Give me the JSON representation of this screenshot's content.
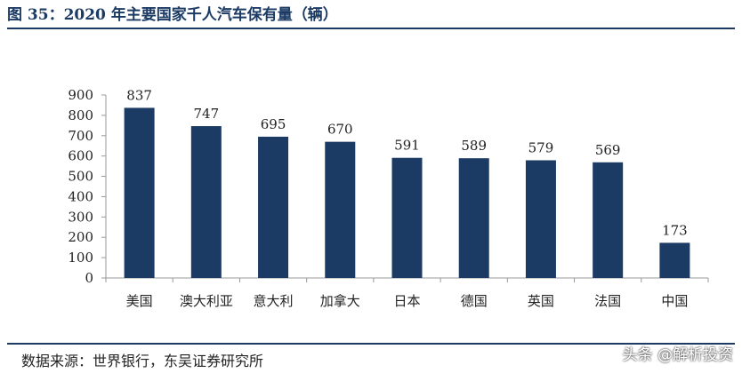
{
  "header": {
    "figure_title": "图 35：2020 年主要国家千人汽车保有量（辆）"
  },
  "footer": {
    "source": "数据来源：世界银行，东吴证券研究所",
    "watermark": "头条 @解析投资"
  },
  "colors": {
    "bar": "#1c3b64",
    "title": "#1c3b64",
    "axis": "#999999"
  },
  "chart_data": {
    "type": "bar",
    "title": "",
    "xlabel": "",
    "ylabel": "",
    "categories": [
      "美国",
      "澳大利亚",
      "意大利",
      "加拿大",
      "日本",
      "德国",
      "英国",
      "法国",
      "中国"
    ],
    "values": [
      837,
      747,
      695,
      670,
      591,
      589,
      579,
      569,
      173
    ],
    "data_labels": [
      "837",
      "747",
      "695",
      "670",
      "591",
      "589",
      "579",
      "569",
      "173"
    ],
    "ylim": [
      0,
      900
    ],
    "yticks": [
      0,
      100,
      200,
      300,
      400,
      500,
      600,
      700,
      800,
      900
    ],
    "grid": false,
    "legend": "none"
  }
}
